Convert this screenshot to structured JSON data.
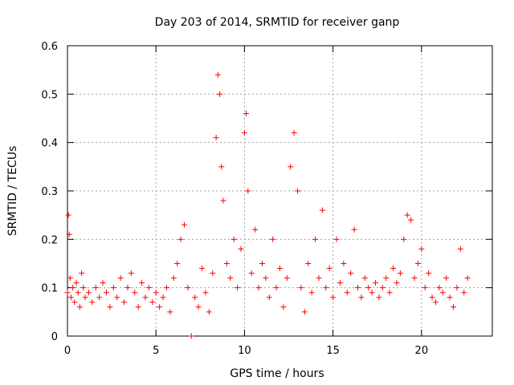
{
  "chart_data": {
    "type": "scatter",
    "title": "Day 203 of 2014, SRMTID for receiver ganp",
    "xlabel": "GPS time / hours",
    "ylabel": "SRMTID / TECUs",
    "xlim": [
      0,
      24
    ],
    "ylim": [
      0,
      0.6
    ],
    "grid": true,
    "marker": "+",
    "series_color": "#ff0000",
    "x_ticks": [
      0,
      5,
      10,
      15,
      20
    ],
    "y_ticks": [
      0,
      0.1,
      0.2,
      0.3,
      0.4,
      0.5,
      0.6
    ],
    "x_tick_labels": [
      "0",
      "5",
      "10",
      "15",
      "20"
    ],
    "y_tick_labels": [
      "0",
      "0.1",
      "0.2",
      "0.3",
      "0.4",
      "0.5",
      "0.6"
    ],
    "series": [
      {
        "name": "SRMTID",
        "x": [
          0.0,
          0.05,
          0.1,
          0.15,
          0.2,
          0.3,
          0.4,
          0.5,
          0.6,
          0.7,
          0.8,
          0.9,
          1.0,
          1.2,
          1.4,
          1.6,
          1.8,
          2.0,
          2.2,
          2.4,
          2.6,
          2.8,
          3.0,
          3.2,
          3.4,
          3.6,
          3.8,
          4.0,
          4.2,
          4.4,
          4.6,
          4.8,
          5.0,
          5.2,
          5.4,
          5.6,
          5.8,
          6.0,
          6.2,
          6.4,
          6.6,
          6.8,
          7.0,
          7.2,
          7.4,
          7.6,
          7.8,
          8.0,
          8.2,
          8.4,
          8.5,
          8.6,
          8.7,
          8.8,
          9.0,
          9.2,
          9.4,
          9.6,
          9.8,
          10.0,
          10.1,
          10.2,
          10.4,
          10.6,
          10.8,
          11.0,
          11.2,
          11.4,
          11.6,
          11.8,
          12.0,
          12.2,
          12.4,
          12.6,
          12.8,
          13.0,
          13.2,
          13.4,
          13.6,
          13.8,
          14.0,
          14.2,
          14.4,
          14.6,
          14.8,
          15.0,
          15.2,
          15.4,
          15.6,
          15.8,
          16.0,
          16.2,
          16.4,
          16.6,
          16.8,
          17.0,
          17.2,
          17.4,
          17.6,
          17.8,
          18.0,
          18.2,
          18.4,
          18.6,
          18.8,
          19.0,
          19.2,
          19.4,
          19.6,
          19.8,
          20.0,
          20.2,
          20.4,
          20.6,
          20.8,
          21.0,
          21.2,
          21.4,
          21.6,
          21.8,
          22.0,
          22.2,
          22.4,
          22.6
        ],
        "y": [
          0.09,
          0.25,
          0.21,
          0.12,
          0.08,
          0.1,
          0.07,
          0.11,
          0.09,
          0.06,
          0.13,
          0.1,
          0.08,
          0.09,
          0.07,
          0.1,
          0.08,
          0.11,
          0.09,
          0.06,
          0.1,
          0.08,
          0.12,
          0.07,
          0.1,
          0.13,
          0.09,
          0.06,
          0.11,
          0.08,
          0.1,
          0.07,
          0.09,
          0.06,
          0.08,
          0.1,
          0.05,
          0.12,
          0.15,
          0.2,
          0.23,
          0.1,
          0.0,
          0.08,
          0.06,
          0.14,
          0.09,
          0.05,
          0.13,
          0.41,
          0.54,
          0.5,
          0.35,
          0.28,
          0.15,
          0.12,
          0.2,
          0.1,
          0.18,
          0.42,
          0.46,
          0.3,
          0.13,
          0.22,
          0.1,
          0.15,
          0.12,
          0.08,
          0.2,
          0.1,
          0.14,
          0.06,
          0.12,
          0.35,
          0.42,
          0.3,
          0.1,
          0.05,
          0.15,
          0.09,
          0.2,
          0.12,
          0.26,
          0.1,
          0.14,
          0.08,
          0.2,
          0.11,
          0.15,
          0.09,
          0.13,
          0.22,
          0.1,
          0.08,
          0.12,
          0.1,
          0.09,
          0.11,
          0.08,
          0.1,
          0.12,
          0.09,
          0.14,
          0.11,
          0.13,
          0.2,
          0.25,
          0.24,
          0.12,
          0.15,
          0.18,
          0.1,
          0.13,
          0.08,
          0.07,
          0.1,
          0.09,
          0.12,
          0.08,
          0.06,
          0.1,
          0.18,
          0.09,
          0.12
        ]
      }
    ]
  }
}
